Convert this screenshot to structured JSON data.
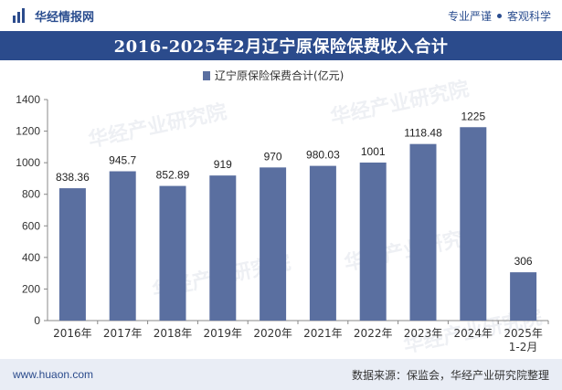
{
  "header": {
    "brand_name": "华经情报网",
    "tagline_left": "专业严谨",
    "tagline_right": "客观科学"
  },
  "watermark": {
    "text": "华经产业研究院",
    "url": "www.huaon.com"
  },
  "chart_data": {
    "type": "bar",
    "title": "2016-2025年2月辽宁原保险保费收入合计",
    "categories": [
      "2016年",
      "2017年",
      "2018年",
      "2019年",
      "2020年",
      "2021年",
      "2022年",
      "2023年",
      "2024年",
      "2025年\n1-2月"
    ],
    "series": [
      {
        "name": "辽宁原保险保费合计(亿元)",
        "values": [
          838.36,
          945.7,
          852.89,
          919,
          970,
          980.03,
          1001,
          1118.48,
          1225,
          306
        ],
        "labels": [
          "838.36",
          "945.7",
          "852.89",
          "919",
          "970",
          "980.03",
          "1001",
          "1118.48",
          "1225",
          "306"
        ]
      }
    ],
    "ylim": [
      0,
      1400
    ],
    "yticks": [
      "0",
      "200",
      "400",
      "600",
      "800",
      "1000",
      "1200",
      "1400"
    ],
    "ytick_values": [
      0,
      200,
      400,
      600,
      800,
      1000,
      1200,
      1400
    ],
    "grid": false,
    "legend_position": "top-center",
    "colors": {
      "bar": "#5a6fa0",
      "axis": "#888888",
      "title_bg": "#2b4b8c"
    }
  },
  "footer": {
    "url": "www.huaon.com",
    "source": "数据来源：保监会，华经产业研究院整理"
  }
}
